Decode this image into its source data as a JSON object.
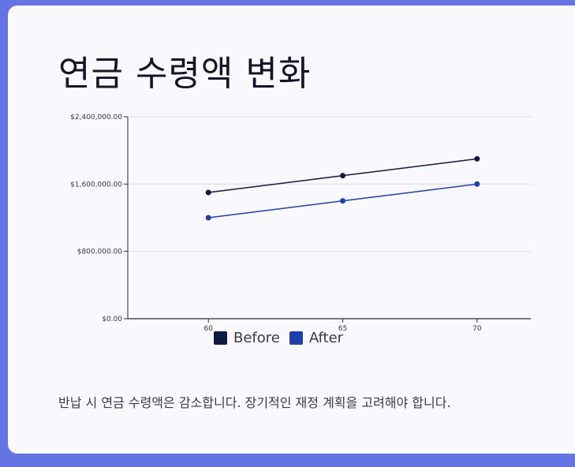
{
  "page": {
    "title": "연금 수령액 변화",
    "description": "반납 시 연금 수령액은 감소합니다. 장기적인 재정 계획을 고려해야 합니다."
  },
  "chart_data": {
    "type": "line",
    "x": [
      60,
      65,
      70
    ],
    "xtick_labels": [
      "60",
      "65",
      "70"
    ],
    "series": [
      {
        "name": "Before",
        "color": "#0f1b47",
        "values": [
          1500000,
          1700000,
          1900000
        ]
      },
      {
        "name": "After",
        "color": "#1e40af",
        "values": [
          1200000,
          1400000,
          1600000
        ]
      }
    ],
    "ylim": [
      0,
      2400000
    ],
    "ytick_labels": [
      "$0.00",
      "$800,000.00",
      "$1,600,000.00",
      "$2,400,000.00"
    ],
    "yticks": [
      0,
      800000,
      1600000,
      2400000
    ],
    "xlim": [
      57,
      72
    ],
    "grid": true,
    "legend_position": "bottom"
  }
}
